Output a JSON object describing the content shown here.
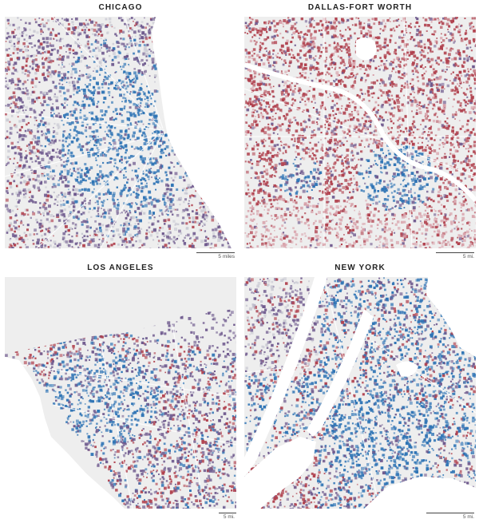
{
  "colors": {
    "land": "#eeeeee",
    "water": "#ffffff",
    "highway": "#ffffff",
    "blue": "#2f74b5",
    "purple": "#6f5a8e",
    "red": "#b0414e",
    "pink": "#d8a1aa",
    "pale": "#c9c9d3"
  },
  "panels": [
    {
      "id": "chicago",
      "title": "CHICAGO",
      "scale_label": "5 miles"
    },
    {
      "id": "dallas",
      "title": "DALLAS-FORT WORTH",
      "scale_label": "5 mi."
    },
    {
      "id": "la",
      "title": "LOS ANGELES",
      "scale_label": "5 mi."
    },
    {
      "id": "ny",
      "title": "NEW YORK",
      "scale_label": "5 mi."
    }
  ]
}
